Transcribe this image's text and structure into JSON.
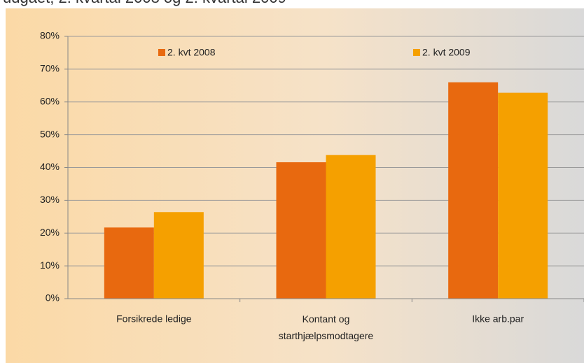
{
  "chart_data": {
    "type": "bar",
    "title": "udgået, 2. kvartal 2008 og 2. kvartal 2009",
    "categories": [
      "Forsikrede ledige",
      "Kontant og\nstarthjælpsmodtagere",
      "Ikke arb.par"
    ],
    "series": [
      {
        "name": "2. kvt 2008",
        "color": "#e8690f",
        "values": [
          21.7,
          41.6,
          66
        ]
      },
      {
        "name": "2. kvt 2009",
        "color": "#f5a000",
        "values": [
          26.4,
          43.8,
          62.8
        ]
      }
    ],
    "ylim": [
      0,
      80
    ],
    "yticks": [
      {
        "value": 0,
        "label": "0%"
      },
      {
        "value": 10,
        "label": "10%"
      },
      {
        "value": 20,
        "label": "20%"
      },
      {
        "value": 30,
        "label": "30%"
      },
      {
        "value": 40,
        "label": "40%"
      },
      {
        "value": 50,
        "label": "50%"
      },
      {
        "value": 60,
        "label": "60%"
      },
      {
        "value": 70,
        "label": "70%"
      },
      {
        "value": 80,
        "label": "80%"
      }
    ],
    "grid": true,
    "legend": "top"
  }
}
